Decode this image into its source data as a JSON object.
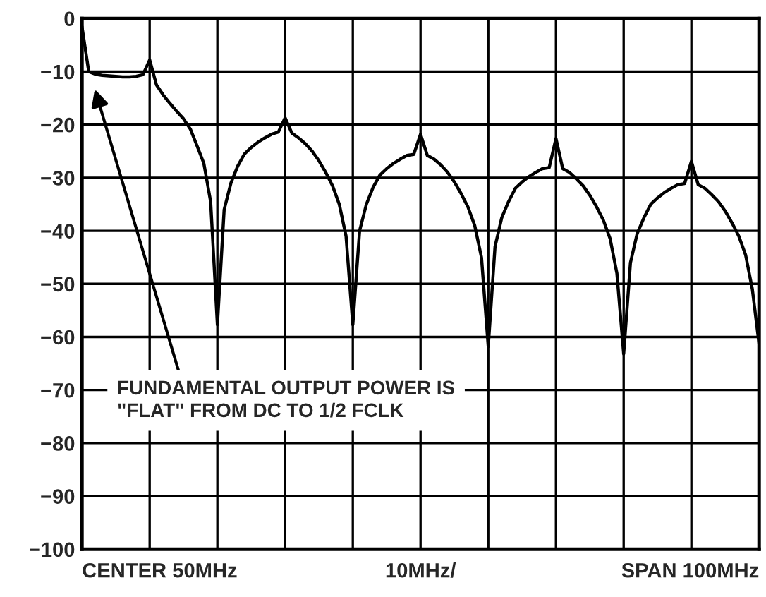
{
  "chart_data": {
    "type": "line",
    "categories": [
      null,
      null,
      null,
      null,
      null,
      null,
      null,
      null,
      null,
      null,
      null,
      null,
      null,
      null,
      null,
      null,
      null,
      null,
      null,
      null,
      null,
      null,
      null,
      null,
      null,
      null,
      null,
      null,
      null,
      null,
      null,
      null,
      null,
      null,
      null,
      null,
      null,
      null,
      null,
      null,
      null,
      null,
      null,
      null,
      null,
      null,
      null,
      null,
      null,
      null,
      null,
      null,
      null,
      null,
      null,
      null,
      null,
      null,
      null,
      null,
      null,
      null,
      null,
      null,
      null,
      null,
      null,
      null,
      null,
      null,
      null,
      null,
      null,
      null,
      null,
      null,
      null,
      null,
      null,
      null,
      null,
      null,
      null,
      null,
      null,
      null,
      null,
      null,
      null,
      null,
      null,
      null,
      null,
      null,
      null,
      null,
      null,
      null,
      null,
      null,
      null
    ],
    "series": [
      {
        "color": "#000000",
        "values": [
          -1.5,
          -10,
          -10.5,
          -10.7,
          -10.8,
          -10.9,
          -11,
          -11,
          -10.9,
          -10.6,
          -7.8,
          -12.5,
          -14.4,
          -16,
          -17.5,
          -18.9,
          -20.8,
          -24,
          -27.3,
          -34.5,
          -57.7,
          -36,
          -31,
          -27.8,
          -25.5,
          -24.3,
          -23.3,
          -22.5,
          -21.8,
          -21.4,
          -18.7,
          -21.6,
          -22.5,
          -23.6,
          -25,
          -26.8,
          -29,
          -31.5,
          -35,
          -41,
          -57.7,
          -40,
          -35,
          -31.8,
          -29.5,
          -28.3,
          -27.3,
          -26.5,
          -25.8,
          -25.6,
          -21.8,
          -25.8,
          -26.5,
          -27.6,
          -29,
          -30.8,
          -33,
          -35.5,
          -39,
          -45,
          -61.8,
          -43,
          -37.5,
          -34.5,
          -32,
          -30.8,
          -29.8,
          -29,
          -28.3,
          -28.1,
          -22.6,
          -28.3,
          -29,
          -30.2,
          -31.5,
          -33.3,
          -35.5,
          -38,
          -41.5,
          -48,
          -63.2,
          -46,
          -40.5,
          -37.5,
          -35,
          -33.8,
          -32.8,
          -32,
          -31.3,
          -31.1,
          -26.9,
          -31.3,
          -32,
          -33.2,
          -34.5,
          -36.3,
          -38.5,
          -41,
          -44.5,
          -51,
          -61.4
        ]
      }
    ],
    "ylim": [
      -100,
      0
    ],
    "yticks": [
      0,
      {
        "value": -10,
        "label": "−10"
      },
      {
        "value": -20,
        "label": "−20"
      },
      {
        "value": -30,
        "label": "−30"
      },
      {
        "value": -40,
        "label": "−40"
      },
      {
        "value": -50,
        "label": "−50"
      },
      {
        "value": -60,
        "label": "−60"
      },
      {
        "value": -70,
        "label": "−70"
      },
      {
        "value": -80,
        "label": "−80"
      },
      {
        "value": -90,
        "label": "−90"
      },
      {
        "value": -100,
        "label": "−100"
      }
    ],
    "tick_labels": "y",
    "grid": true,
    "line_style": "solid",
    "annotations": [
      "FUNDAMENTAL OUTPUT POWER IS\n\"FLAT\" FROM DC TO 1/2 FCLK",
      "CENTER 50MHz",
      "10MHz/",
      "SPAN 100MHz"
    ]
  }
}
